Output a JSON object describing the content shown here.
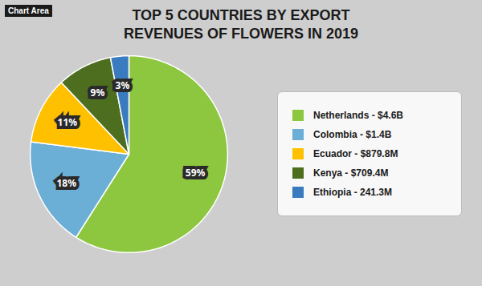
{
  "chart_data": {
    "type": "pie",
    "title": "TOP 5 COUNTRIES BY EXPORT\nREVENUES OF FLOWERS IN 2019",
    "annotations": [
      "Chart Area"
    ],
    "categories": [
      "Netherlands - $4.6B",
      "Colombia - $1.4B",
      "Ecuador - $879.8M",
      "Kenya - $709.4M",
      "Ethiopia - 241.3M"
    ],
    "values": [
      59,
      18,
      11,
      9,
      3
    ],
    "value_labels": [
      "59%",
      "18%",
      "11%",
      "9%",
      "3%"
    ],
    "colors": [
      "#8dc63f",
      "#6baed6",
      "#ffc000",
      "#4d6e1f",
      "#3a7abf"
    ],
    "data_labels": true,
    "legend": "right"
  }
}
